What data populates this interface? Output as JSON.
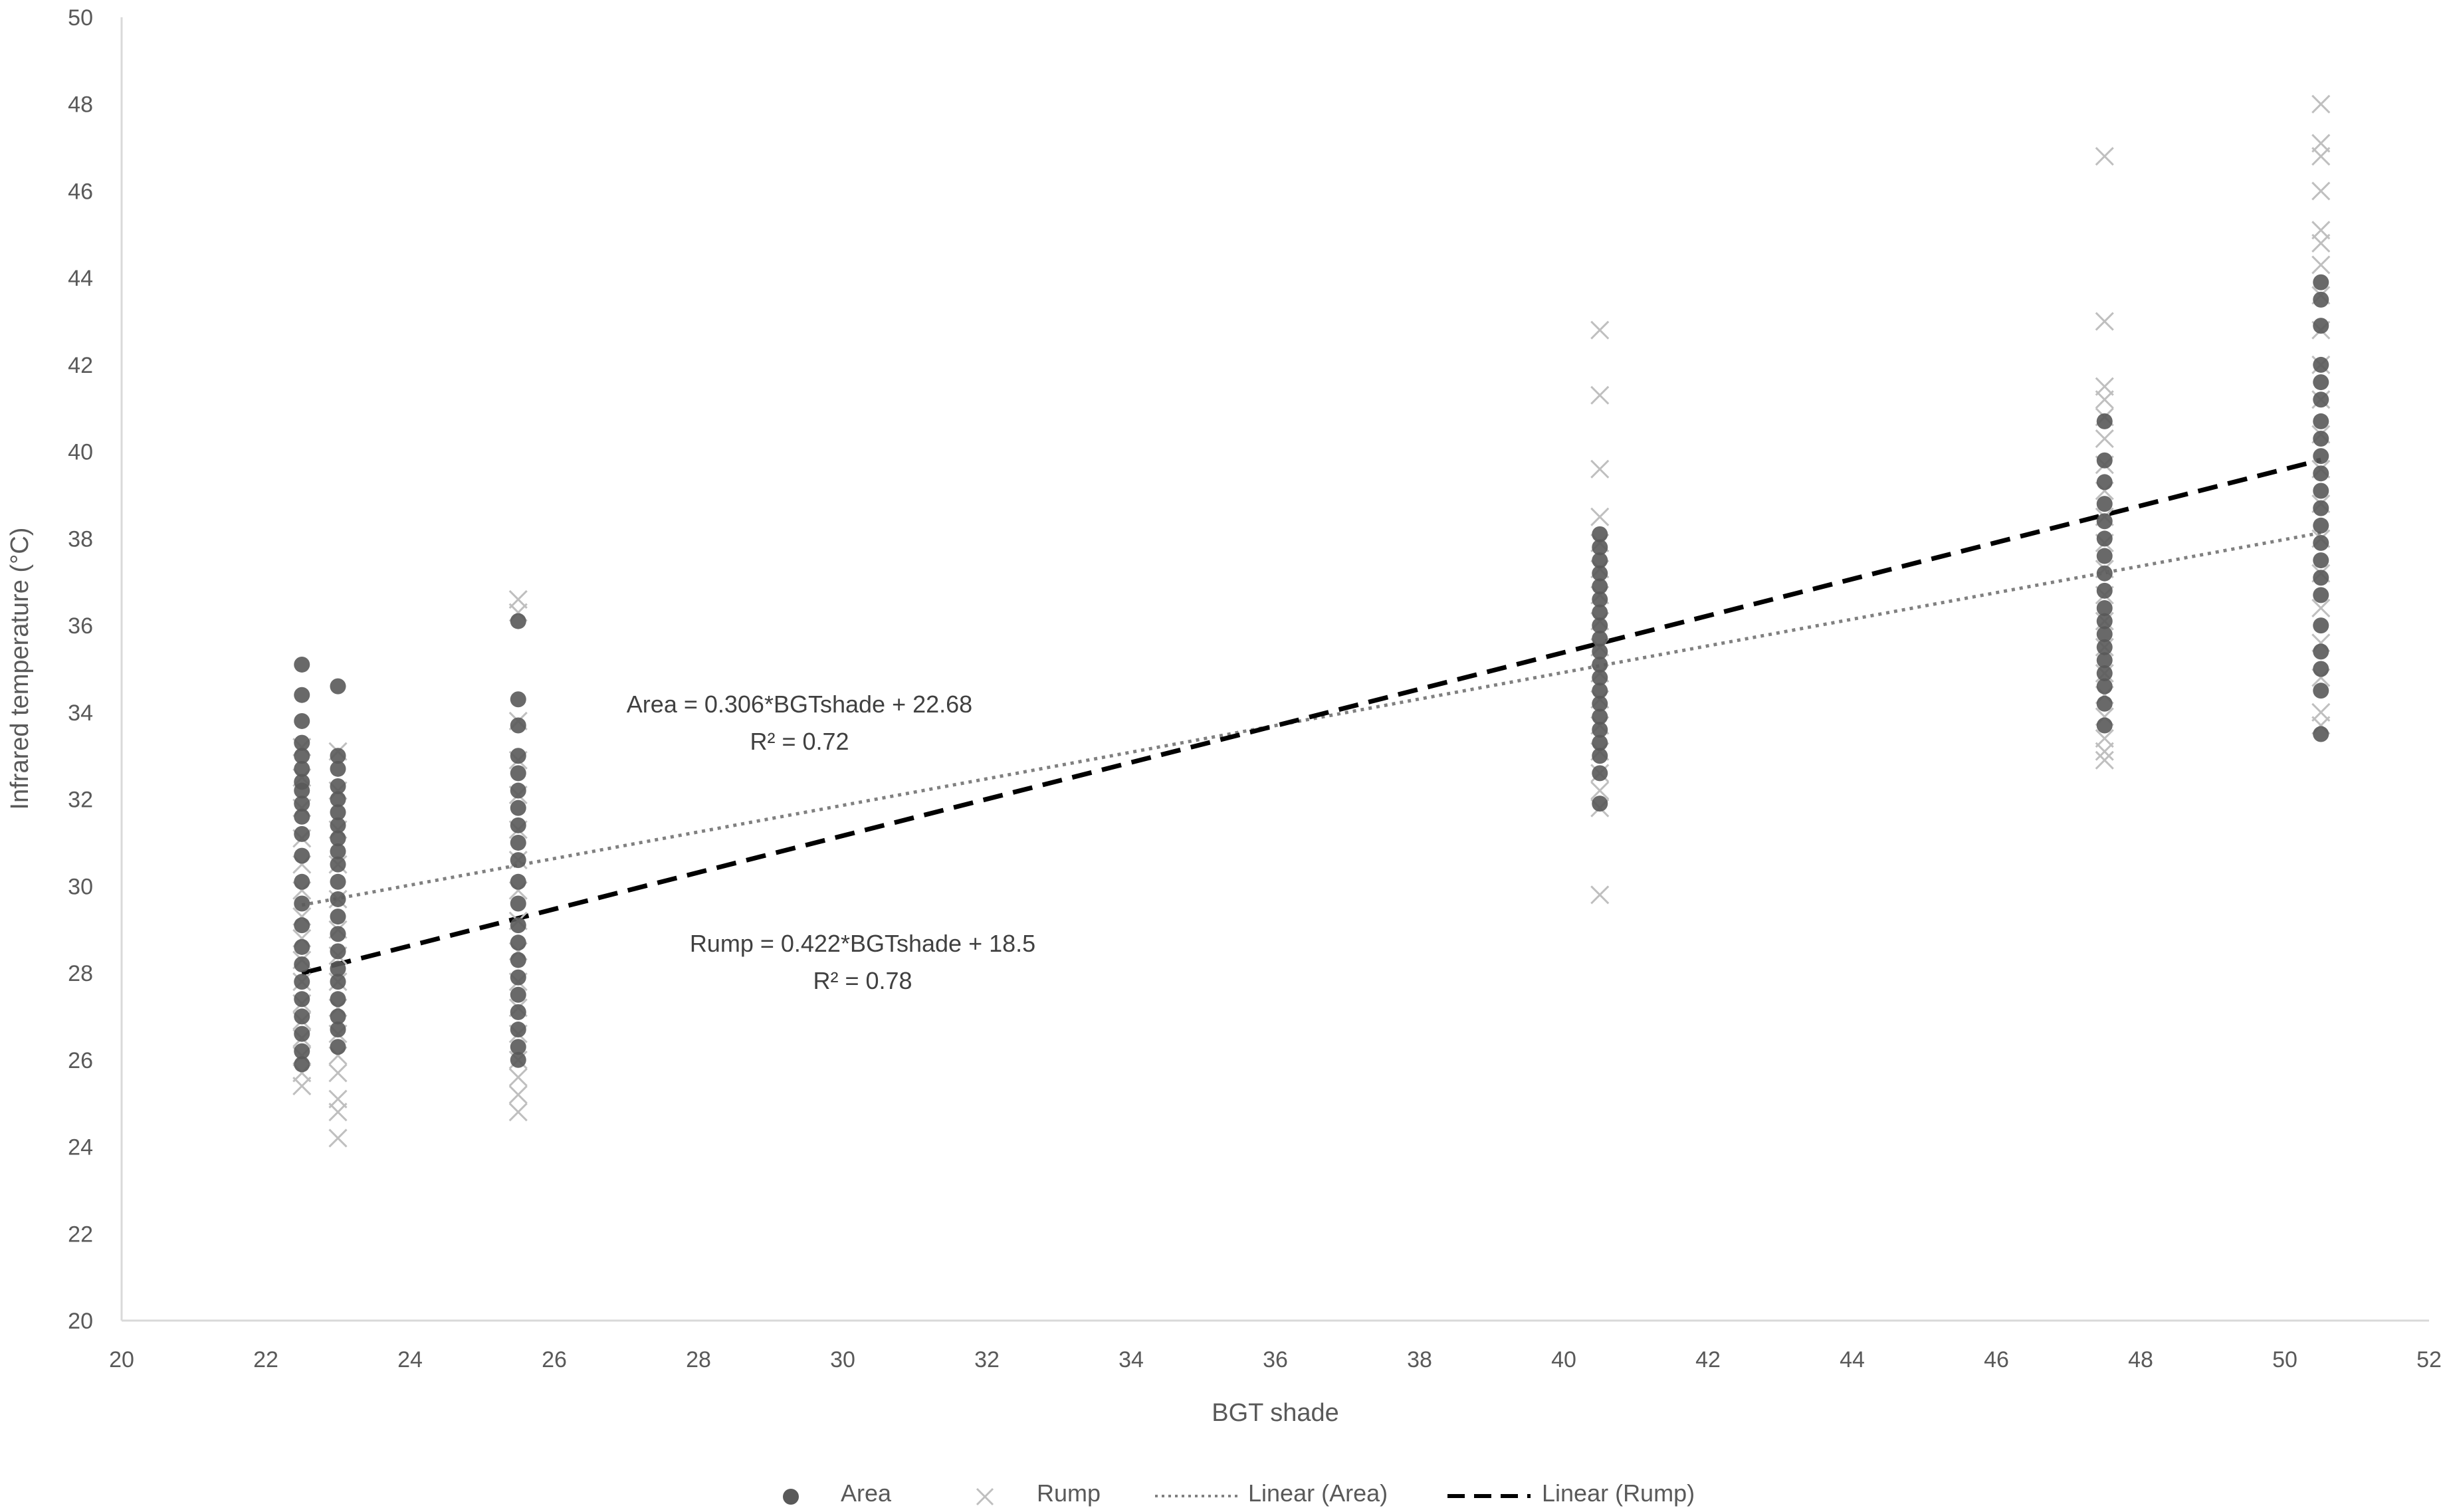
{
  "chart_data": {
    "type": "scatter",
    "xlabel": "BGT shade",
    "ylabel": "Infrared temperature (°C)",
    "xlim": [
      20,
      52
    ],
    "ylim": [
      20,
      50
    ],
    "x_ticks": [
      20,
      22,
      24,
      26,
      28,
      30,
      32,
      34,
      36,
      38,
      40,
      42,
      44,
      46,
      48,
      50,
      52
    ],
    "y_ticks": [
      20,
      22,
      24,
      26,
      28,
      30,
      32,
      34,
      36,
      38,
      40,
      42,
      44,
      46,
      48,
      50
    ],
    "grid": false,
    "legend_position": "bottom",
    "series": [
      {
        "name": "Area",
        "marker": "circle",
        "color": "#595959",
        "points": [
          [
            22.5,
            35.1
          ],
          [
            22.5,
            34.4
          ],
          [
            22.5,
            33.8
          ],
          [
            22.5,
            33.3
          ],
          [
            22.5,
            33.0
          ],
          [
            22.5,
            32.7
          ],
          [
            22.5,
            32.4
          ],
          [
            22.5,
            32.2
          ],
          [
            22.5,
            31.9
          ],
          [
            22.5,
            31.6
          ],
          [
            22.5,
            31.2
          ],
          [
            22.5,
            30.7
          ],
          [
            22.5,
            30.1
          ],
          [
            22.5,
            29.6
          ],
          [
            22.5,
            29.1
          ],
          [
            22.5,
            28.6
          ],
          [
            22.5,
            28.2
          ],
          [
            22.5,
            27.8
          ],
          [
            22.5,
            27.4
          ],
          [
            22.5,
            27.0
          ],
          [
            22.5,
            26.6
          ],
          [
            22.5,
            26.2
          ],
          [
            22.5,
            25.9
          ],
          [
            23.0,
            34.6
          ],
          [
            23.0,
            33.0
          ],
          [
            23.0,
            32.7
          ],
          [
            23.0,
            32.3
          ],
          [
            23.0,
            32.0
          ],
          [
            23.0,
            31.7
          ],
          [
            23.0,
            31.4
          ],
          [
            23.0,
            31.1
          ],
          [
            23.0,
            30.8
          ],
          [
            23.0,
            30.5
          ],
          [
            23.0,
            30.1
          ],
          [
            23.0,
            29.7
          ],
          [
            23.0,
            29.3
          ],
          [
            23.0,
            28.9
          ],
          [
            23.0,
            28.5
          ],
          [
            23.0,
            28.1
          ],
          [
            23.0,
            27.8
          ],
          [
            23.0,
            27.4
          ],
          [
            23.0,
            27.0
          ],
          [
            23.0,
            26.7
          ],
          [
            23.0,
            26.3
          ],
          [
            25.5,
            36.1
          ],
          [
            25.5,
            34.3
          ],
          [
            25.5,
            33.7
          ],
          [
            25.5,
            33.0
          ],
          [
            25.5,
            32.6
          ],
          [
            25.5,
            32.2
          ],
          [
            25.5,
            31.8
          ],
          [
            25.5,
            31.4
          ],
          [
            25.5,
            31.0
          ],
          [
            25.5,
            30.6
          ],
          [
            25.5,
            30.1
          ],
          [
            25.5,
            29.6
          ],
          [
            25.5,
            29.1
          ],
          [
            25.5,
            28.7
          ],
          [
            25.5,
            28.3
          ],
          [
            25.5,
            27.9
          ],
          [
            25.5,
            27.5
          ],
          [
            25.5,
            27.1
          ],
          [
            25.5,
            26.7
          ],
          [
            25.5,
            26.3
          ],
          [
            25.5,
            26.0
          ],
          [
            40.5,
            38.1
          ],
          [
            40.5,
            37.8
          ],
          [
            40.5,
            37.5
          ],
          [
            40.5,
            37.2
          ],
          [
            40.5,
            36.9
          ],
          [
            40.5,
            36.6
          ],
          [
            40.5,
            36.3
          ],
          [
            40.5,
            36.0
          ],
          [
            40.5,
            35.7
          ],
          [
            40.5,
            35.4
          ],
          [
            40.5,
            35.1
          ],
          [
            40.5,
            34.8
          ],
          [
            40.5,
            34.5
          ],
          [
            40.5,
            34.2
          ],
          [
            40.5,
            33.9
          ],
          [
            40.5,
            33.6
          ],
          [
            40.5,
            33.3
          ],
          [
            40.5,
            33.0
          ],
          [
            40.5,
            32.6
          ],
          [
            40.5,
            31.9
          ],
          [
            47.5,
            40.7
          ],
          [
            47.5,
            39.8
          ],
          [
            47.5,
            39.3
          ],
          [
            47.5,
            38.8
          ],
          [
            47.5,
            38.4
          ],
          [
            47.5,
            38.0
          ],
          [
            47.5,
            37.6
          ],
          [
            47.5,
            37.2
          ],
          [
            47.5,
            36.8
          ],
          [
            47.5,
            36.4
          ],
          [
            47.5,
            36.1
          ],
          [
            47.5,
            35.8
          ],
          [
            47.5,
            35.5
          ],
          [
            47.5,
            35.2
          ],
          [
            47.5,
            34.9
          ],
          [
            47.5,
            34.6
          ],
          [
            47.5,
            34.2
          ],
          [
            47.5,
            33.7
          ],
          [
            50.5,
            43.9
          ],
          [
            50.5,
            43.5
          ],
          [
            50.5,
            42.9
          ],
          [
            50.5,
            42.0
          ],
          [
            50.5,
            41.6
          ],
          [
            50.5,
            41.2
          ],
          [
            50.5,
            40.7
          ],
          [
            50.5,
            40.3
          ],
          [
            50.5,
            39.9
          ],
          [
            50.5,
            39.5
          ],
          [
            50.5,
            39.1
          ],
          [
            50.5,
            38.7
          ],
          [
            50.5,
            38.3
          ],
          [
            50.5,
            37.9
          ],
          [
            50.5,
            37.5
          ],
          [
            50.5,
            37.1
          ],
          [
            50.5,
            36.7
          ],
          [
            50.5,
            36.0
          ],
          [
            50.5,
            35.4
          ],
          [
            50.5,
            35.0
          ],
          [
            50.5,
            34.5
          ],
          [
            50.5,
            33.5
          ]
        ]
      },
      {
        "name": "Rump",
        "marker": "x",
        "color": "#bfbfbf",
        "points": [
          [
            22.5,
            33.2
          ],
          [
            22.5,
            32.5
          ],
          [
            22.5,
            31.8
          ],
          [
            22.5,
            31.1
          ],
          [
            22.5,
            30.5
          ],
          [
            22.5,
            29.9
          ],
          [
            22.5,
            29.3
          ],
          [
            22.5,
            28.8
          ],
          [
            22.5,
            28.3
          ],
          [
            22.5,
            27.8
          ],
          [
            22.5,
            27.3
          ],
          [
            22.5,
            26.9
          ],
          [
            22.5,
            26.5
          ],
          [
            22.5,
            26.1
          ],
          [
            22.5,
            25.7
          ],
          [
            22.5,
            25.4
          ],
          [
            23.0,
            33.1
          ],
          [
            23.0,
            32.2
          ],
          [
            23.0,
            31.3
          ],
          [
            23.0,
            30.5
          ],
          [
            23.0,
            29.7
          ],
          [
            23.0,
            29.0
          ],
          [
            23.0,
            28.4
          ],
          [
            23.0,
            27.8
          ],
          [
            23.0,
            27.2
          ],
          [
            23.0,
            26.6
          ],
          [
            23.0,
            26.1
          ],
          [
            23.0,
            25.7
          ],
          [
            23.0,
            25.1
          ],
          [
            23.0,
            24.8
          ],
          [
            23.0,
            24.2
          ],
          [
            25.5,
            36.6
          ],
          [
            25.5,
            36.3
          ],
          [
            25.5,
            33.8
          ],
          [
            25.5,
            32.9
          ],
          [
            25.5,
            32.1
          ],
          [
            25.5,
            31.3
          ],
          [
            25.5,
            30.6
          ],
          [
            25.5,
            29.9
          ],
          [
            25.5,
            29.2
          ],
          [
            25.5,
            28.5
          ],
          [
            25.5,
            27.8
          ],
          [
            25.5,
            27.2
          ],
          [
            25.5,
            26.6
          ],
          [
            25.5,
            26.0
          ],
          [
            25.5,
            25.6
          ],
          [
            25.5,
            25.2
          ],
          [
            25.5,
            24.8
          ],
          [
            40.5,
            42.8
          ],
          [
            40.5,
            41.3
          ],
          [
            40.5,
            39.6
          ],
          [
            40.5,
            38.5
          ],
          [
            40.5,
            37.9
          ],
          [
            40.5,
            37.3
          ],
          [
            40.5,
            36.7
          ],
          [
            40.5,
            36.1
          ],
          [
            40.5,
            35.5
          ],
          [
            40.5,
            34.9
          ],
          [
            40.5,
            34.3
          ],
          [
            40.5,
            33.7
          ],
          [
            40.5,
            33.1
          ],
          [
            40.5,
            32.6
          ],
          [
            40.5,
            32.2
          ],
          [
            40.5,
            31.8
          ],
          [
            40.5,
            29.8
          ],
          [
            47.5,
            46.8
          ],
          [
            47.5,
            43.0
          ],
          [
            47.5,
            41.5
          ],
          [
            47.5,
            41.2
          ],
          [
            47.5,
            40.8
          ],
          [
            47.5,
            40.3
          ],
          [
            47.5,
            39.7
          ],
          [
            47.5,
            39.1
          ],
          [
            47.5,
            38.5
          ],
          [
            47.5,
            37.9
          ],
          [
            47.5,
            37.3
          ],
          [
            47.5,
            36.7
          ],
          [
            47.5,
            36.1
          ],
          [
            47.5,
            35.5
          ],
          [
            47.5,
            34.9
          ],
          [
            47.5,
            34.4
          ],
          [
            47.5,
            33.9
          ],
          [
            47.5,
            33.4
          ],
          [
            47.5,
            33.1
          ],
          [
            47.5,
            32.9
          ],
          [
            50.5,
            48.0
          ],
          [
            50.5,
            47.1
          ],
          [
            50.5,
            46.8
          ],
          [
            50.5,
            46.0
          ],
          [
            50.5,
            45.1
          ],
          [
            50.5,
            44.8
          ],
          [
            50.5,
            44.3
          ],
          [
            50.5,
            43.6
          ],
          [
            50.5,
            42.8
          ],
          [
            50.5,
            42.0
          ],
          [
            50.5,
            41.2
          ],
          [
            50.5,
            40.4
          ],
          [
            50.5,
            39.6
          ],
          [
            50.5,
            38.8
          ],
          [
            50.5,
            38.0
          ],
          [
            50.5,
            37.2
          ],
          [
            50.5,
            36.4
          ],
          [
            50.5,
            35.6
          ],
          [
            50.5,
            34.8
          ],
          [
            50.5,
            34.0
          ],
          [
            50.5,
            33.7
          ]
        ]
      }
    ],
    "trendlines": [
      {
        "name": "Linear (Area)",
        "style": "dotted",
        "color": "#808080",
        "slope": 0.306,
        "intercept": 22.68,
        "x_range": [
          22.5,
          50.5
        ],
        "equation": "Area = 0.306*BGTshade + 22.68",
        "r2": "R² = 0.72"
      },
      {
        "name": "Linear (Rump)",
        "style": "dashed",
        "color": "#000000",
        "slope": 0.422,
        "intercept": 18.5,
        "x_range": [
          22.5,
          50.5
        ],
        "equation": "Rump = 0.422*BGTshade + 18.5",
        "r2": "R² = 0.78"
      }
    ],
    "legend": [
      {
        "label": "Area",
        "symbol": "circle"
      },
      {
        "label": "Rump",
        "symbol": "x"
      },
      {
        "label": "Linear (Area)",
        "symbol": "dotted-line"
      },
      {
        "label": "Linear (Rump)",
        "symbol": "dashed-line"
      }
    ]
  }
}
